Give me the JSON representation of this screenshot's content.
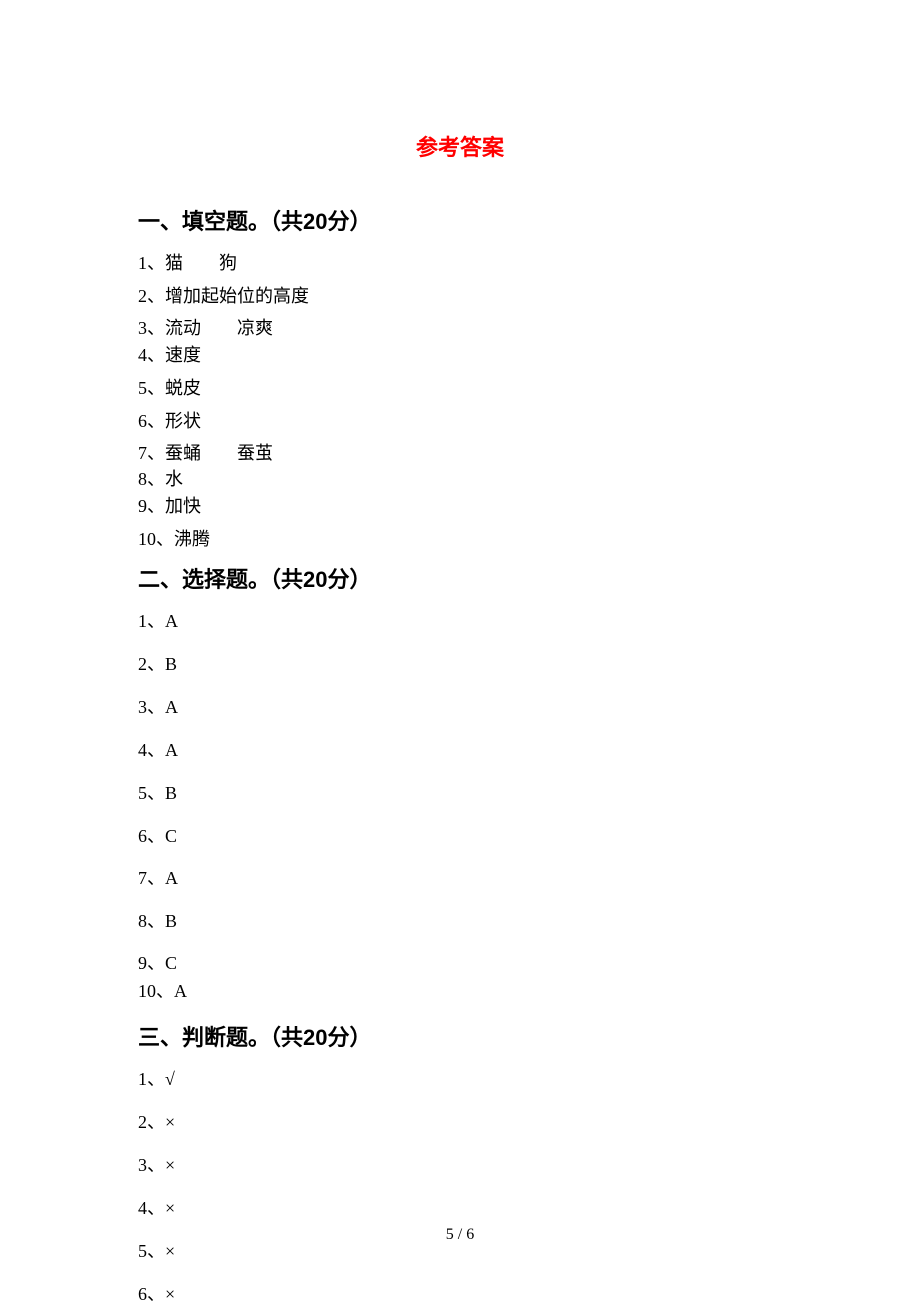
{
  "title": "参考答案",
  "page_number": "5 / 6",
  "colors": {
    "title_color": "#ff0000",
    "text_color": "#000000",
    "background": "#ffffff"
  },
  "typography": {
    "title_fontsize": 22,
    "section_header_fontsize": 22,
    "body_fontsize": 18,
    "page_number_fontsize": 16,
    "title_font": "SimHei",
    "body_font": "SimSun"
  },
  "sections": [
    {
      "header": "一、填空题。（共20分）",
      "items": [
        {
          "num": "1",
          "text": "猫　　狗"
        },
        {
          "num": "2",
          "text": "增加起始位的高度"
        },
        {
          "num": "3",
          "text": "流动　　凉爽"
        },
        {
          "num": "4",
          "text": "速度"
        },
        {
          "num": "5",
          "text": "蜕皮"
        },
        {
          "num": "6",
          "text": "形状"
        },
        {
          "num": "7",
          "text": "蚕蛹　　蚕茧"
        },
        {
          "num": "8",
          "text": "水"
        },
        {
          "num": "9",
          "text": "加快"
        },
        {
          "num": "10",
          "text": "沸腾"
        }
      ]
    },
    {
      "header": "二、选择题。（共20分）",
      "items": [
        {
          "num": "1",
          "text": "A"
        },
        {
          "num": "2",
          "text": "B"
        },
        {
          "num": "3",
          "text": "A"
        },
        {
          "num": "4",
          "text": "A"
        },
        {
          "num": "5",
          "text": "B"
        },
        {
          "num": "6",
          "text": "C"
        },
        {
          "num": "7",
          "text": "A"
        },
        {
          "num": "8",
          "text": "B"
        },
        {
          "num": "9",
          "text": "C"
        },
        {
          "num": "10",
          "text": "A"
        }
      ]
    },
    {
      "header": "三、判断题。（共20分）",
      "items": [
        {
          "num": "1",
          "text": "√"
        },
        {
          "num": "2",
          "text": "×"
        },
        {
          "num": "3",
          "text": "×"
        },
        {
          "num": "4",
          "text": "×"
        },
        {
          "num": "5",
          "text": "×"
        },
        {
          "num": "6",
          "text": "×"
        }
      ]
    }
  ]
}
